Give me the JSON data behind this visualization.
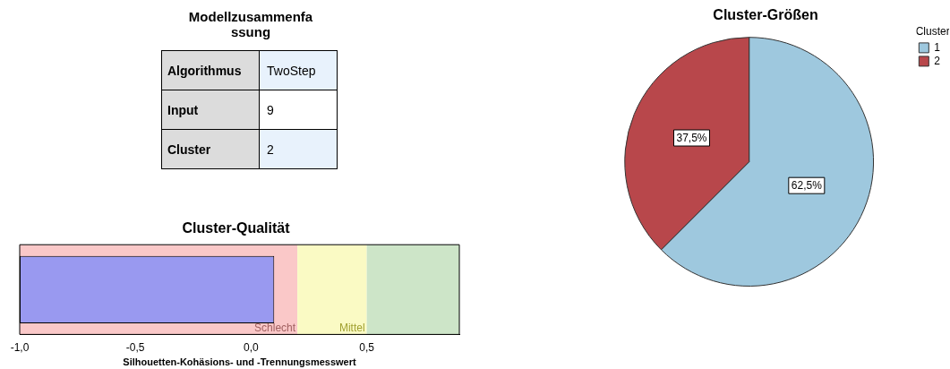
{
  "chart_data": [
    {
      "type": "other",
      "title": "Modellzusammenfassung",
      "categories": [
        "Algorithmus",
        "Input",
        "Cluster"
      ],
      "annotations": [
        "TwoStep",
        "9",
        "2"
      ]
    },
    {
      "type": "bar",
      "title": "Cluster-Qualität",
      "xlabel": "Silhouetten-Kohäsions- und -Trennungsmesswert",
      "orientation": "horizontal",
      "categories": [
        null
      ],
      "values": [
        1.1
      ],
      "base": [
        -1
      ],
      "color": "#9999f0",
      "xlim": [
        -1,
        0.9
      ],
      "xticks": [
        {
          "value": -1,
          "label": "-1,0"
        },
        {
          "value": -0.5,
          "label": "-0,5"
        },
        {
          "value": 0,
          "label": "0,0"
        },
        {
          "value": 0.5,
          "label": "0,5"
        }
      ],
      "tick_labels": "x",
      "grid": false,
      "bands": [
        {
          "axis": "x",
          "from": -1,
          "to": 0.2,
          "label": "Schlecht",
          "color": "#fac8c8"
        },
        {
          "axis": "x",
          "from": 0.2,
          "to": 0.5,
          "label": "Mittel",
          "color": "#fafac4"
        },
        {
          "axis": "x",
          "from": 0.5,
          "to": 0.9,
          "color": "#cde5c8"
        }
      ]
    },
    {
      "type": "pie",
      "title": "Cluster-Größen",
      "categories": [
        "1",
        "2"
      ],
      "values": [
        62.5,
        37.5
      ],
      "colors": [
        "#9ec8de",
        "#b8474b"
      ],
      "value_labels": [
        "62,5%",
        "37,5%"
      ],
      "legend": "right",
      "legend_title": "Cluster"
    }
  ]
}
